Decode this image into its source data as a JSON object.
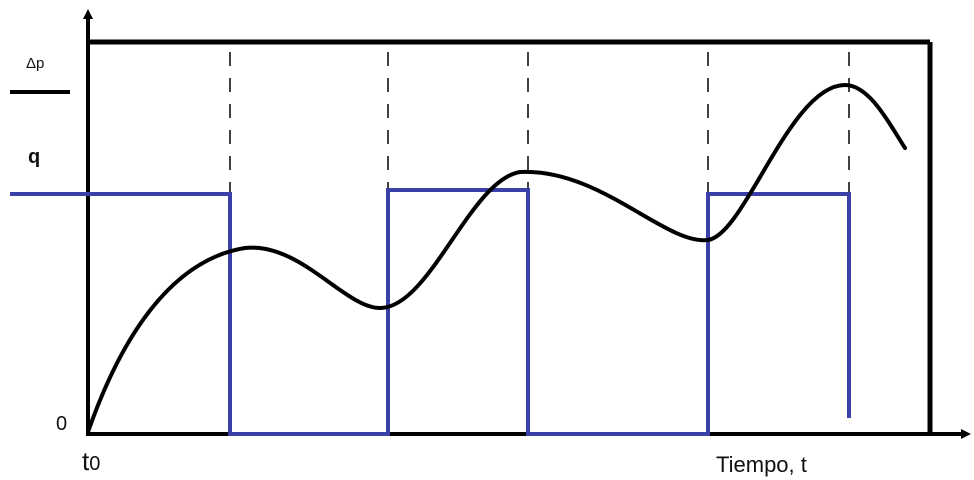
{
  "labels": {
    "delta_p": "Δp",
    "q": "q",
    "zero": "0",
    "t0_base": "t",
    "t0_sub": "0",
    "x_axis": "Tiempo, t"
  },
  "colors": {
    "pressure_curve": "#000000",
    "rate_curve": "#3b40a8",
    "frame": "#000000",
    "guide": "#000000"
  }
}
